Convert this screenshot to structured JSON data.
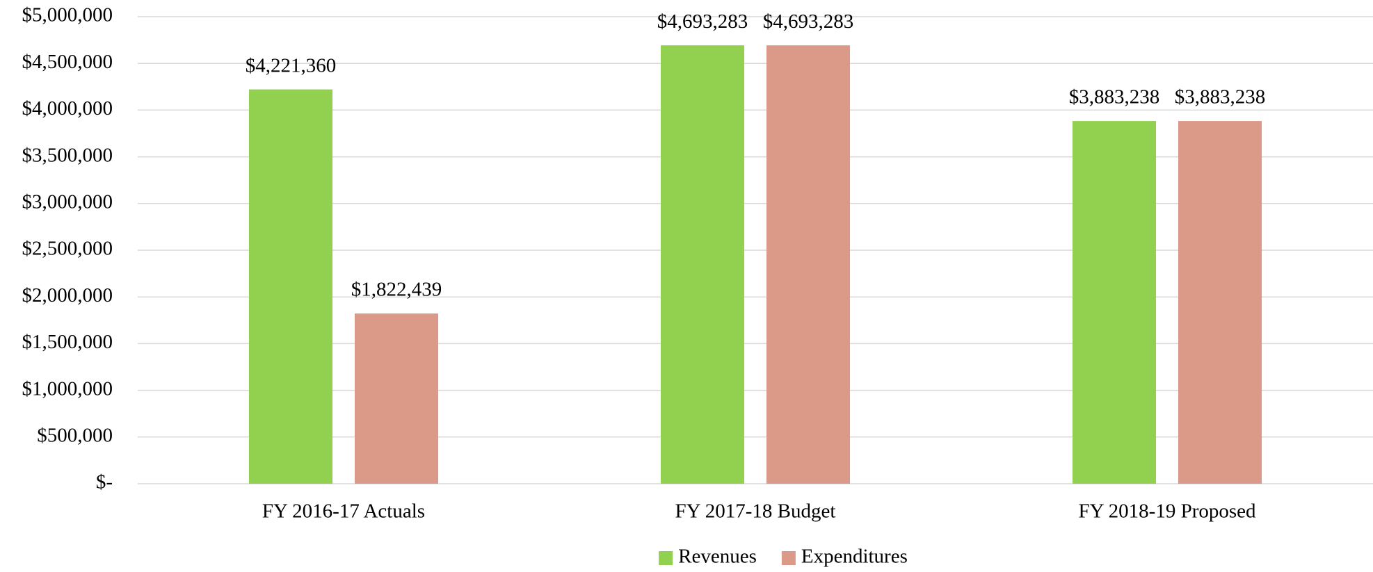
{
  "chart_data": {
    "type": "bar",
    "categories": [
      "FY 2016-17 Actuals",
      "FY 2017-18 Budget",
      "FY 2018-19 Proposed"
    ],
    "series": [
      {
        "name": "Revenues",
        "color": "#92d050",
        "values": [
          4221360,
          4693283,
          3883238
        ],
        "value_labels": [
          "$4,221,360",
          "$4,693,283",
          "$3,883,238"
        ]
      },
      {
        "name": "Expenditures",
        "color": "#da9a87",
        "values": [
          1822439,
          4693283,
          3883238
        ],
        "value_labels": [
          "$1,822,439",
          "$4,693,283",
          "$3,883,238"
        ]
      }
    ],
    "ylim": [
      0,
      5000000
    ],
    "yticks": [
      {
        "value": 0,
        "label": "$-"
      },
      {
        "value": 500000,
        "label": "$500,000"
      },
      {
        "value": 1000000,
        "label": "$1,000,000"
      },
      {
        "value": 1500000,
        "label": "$1,500,000"
      },
      {
        "value": 2000000,
        "label": "$2,000,000"
      },
      {
        "value": 2500000,
        "label": "$2,500,000"
      },
      {
        "value": 3000000,
        "label": "$3,000,000"
      },
      {
        "value": 3500000,
        "label": "$3,500,000"
      },
      {
        "value": 4000000,
        "label": "$4,000,000"
      },
      {
        "value": 4500000,
        "label": "$4,500,000"
      },
      {
        "value": 5000000,
        "label": "$5,000,000"
      }
    ],
    "grid": true,
    "legend": "bottom"
  }
}
